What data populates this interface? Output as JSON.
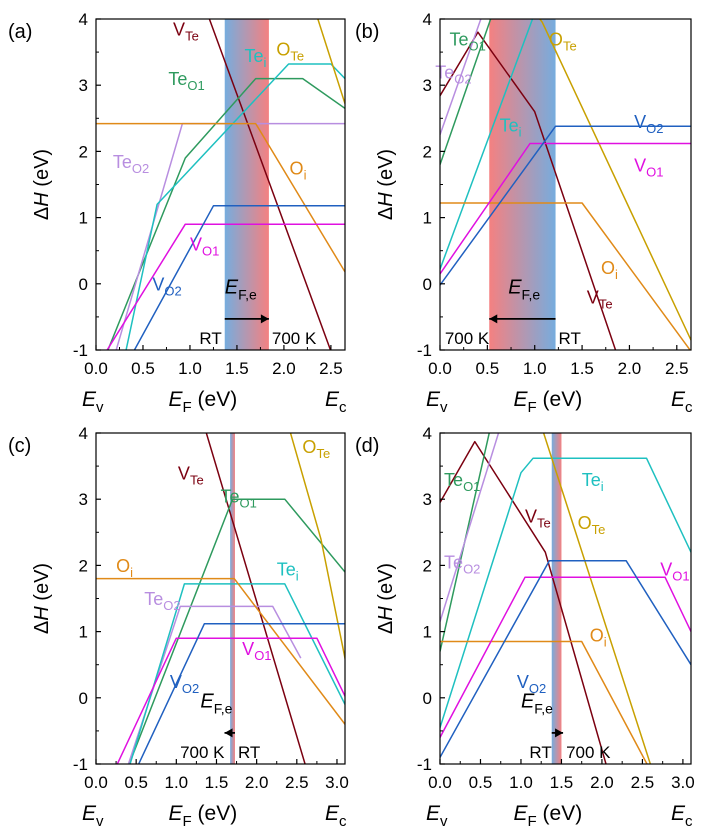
{
  "figure": {
    "panel_labels": [
      "(a)",
      "(b)",
      "(c)",
      "(d)"
    ],
    "ylabel_main": "ΔH",
    "ylabel_italic": "H",
    "ylabel_delta": "Δ",
    "ylabel_unit": " (eV)",
    "xlabel_main": "E",
    "xlabel_sub": "F",
    "xlabel_unit": " (eV)",
    "ev_main": "E",
    "ev_sub": "v",
    "ec_main": "E",
    "ec_sub": "c",
    "efe_main": "E",
    "efe_sub": "F,e"
  },
  "colors": {
    "V_Te": "#7b0010",
    "Te_O1": "#2e9a5e",
    "Te_O2": "#b88ee0",
    "Te_i": "#1ec0c0",
    "O_Te": "#c8a000",
    "O_i": "#e08a18",
    "V_O1": "#e010e0",
    "V_O2": "#2060c0",
    "band_red": "#f47a7a",
    "band_blue": "#6fa8dc"
  },
  "chart_data": [
    {
      "type": "line",
      "panel": "(a)",
      "xlim": [
        0,
        2.65
      ],
      "ylim": [
        -1,
        4
      ],
      "xticks": [
        "0.0",
        "0.5",
        "1.0",
        "1.5",
        "2.0",
        "2.5"
      ],
      "yticks": [
        "-1",
        "0",
        "1",
        "2",
        "3",
        "4"
      ],
      "band": {
        "from": 1.37,
        "to": 1.84,
        "red_side": "right"
      },
      "arrow": {
        "from": 1.37,
        "to": 1.84,
        "y": -0.53
      },
      "arrow_left_label": "RT",
      "arrow_right_label": "700 K",
      "efe_label_x": 1.37,
      "efe_label_y": -0.15,
      "series": [
        {
          "name": "V_Te",
          "label_main": "V",
          "label_sub": "Te",
          "label_at": [
            0.82,
            3.75
          ],
          "x": [
            1.0,
            2.65
          ],
          "y": [
            4.8,
            -1.6
          ]
        },
        {
          "name": "Te_O1",
          "label_main": "Te",
          "label_sub": "O1",
          "label_at": [
            0.77,
            3.0
          ],
          "x": [
            -0.1,
            0.95,
            1.7,
            2.2,
            2.65
          ],
          "y": [
            -1.8,
            1.9,
            3.1,
            3.1,
            2.65
          ]
        },
        {
          "name": "Te_O2",
          "label_main": "Te",
          "label_sub": "O2",
          "label_at": [
            0.18,
            1.75
          ],
          "x": [
            0.05,
            0.92,
            2.65
          ],
          "y": [
            -1.8,
            2.42,
            2.42
          ]
        },
        {
          "name": "Te_i",
          "label_main": "Te",
          "label_sub": "i",
          "label_at": [
            1.58,
            3.35
          ],
          "x": [
            0.2,
            0.65,
            2.05,
            2.5,
            2.65
          ],
          "y": [
            -1.8,
            1.2,
            3.32,
            3.32,
            3.1
          ]
        },
        {
          "name": "O_Te",
          "label_main": "O",
          "label_sub": "Te",
          "label_at": [
            1.92,
            3.45
          ],
          "x": [
            2.35,
            2.65
          ],
          "y": [
            4.05,
            2.72
          ]
        },
        {
          "name": "O_i",
          "label_main": "O",
          "label_sub": "i",
          "label_at": [
            2.06,
            1.65
          ],
          "x": [
            0.0,
            1.7,
            2.65
          ],
          "y": [
            2.42,
            2.42,
            0.18
          ]
        },
        {
          "name": "V_O1",
          "label_main": "V",
          "label_sub": "O1",
          "label_at": [
            1.0,
            0.5
          ],
          "x": [
            -0.1,
            0.95,
            2.65
          ],
          "y": [
            -1.5,
            0.9,
            0.9
          ]
        },
        {
          "name": "V_O2",
          "label_main": "V",
          "label_sub": "O2",
          "label_at": [
            0.6,
            -0.1
          ],
          "x": [
            0.1,
            1.25,
            2.65
          ],
          "y": [
            -1.8,
            1.18,
            1.18
          ]
        }
      ]
    },
    {
      "type": "line",
      "panel": "(b)",
      "xlim": [
        0,
        2.65
      ],
      "ylim": [
        -1,
        4
      ],
      "xticks": [
        "0.0",
        "0.5",
        "1.0",
        "1.5",
        "2.0",
        "2.5"
      ],
      "yticks": [
        "-1",
        "0",
        "1",
        "2",
        "3",
        "4"
      ],
      "band": {
        "from": 0.52,
        "to": 1.22,
        "red_side": "left"
      },
      "arrow": {
        "from": 1.22,
        "to": 0.52,
        "y": -0.53
      },
      "arrow_left_label": "700 K",
      "arrow_right_label": "RT",
      "efe_label_x": 0.72,
      "efe_label_y": -0.15,
      "series": [
        {
          "name": "V_Te",
          "label_main": "V",
          "label_sub": "Te",
          "label_at": [
            1.55,
            -0.3
          ],
          "x": [
            -0.1,
            0.4,
            1.0,
            1.9
          ],
          "y": [
            2.6,
            3.8,
            2.6,
            -1.2
          ]
        },
        {
          "name": "Te_O1",
          "label_main": "Te",
          "label_sub": "O1",
          "label_at": [
            0.1,
            3.6
          ],
          "x": [
            0.0,
            0.9
          ],
          "y": [
            1.8,
            5.5
          ]
        },
        {
          "name": "Te_O2",
          "label_main": "Te",
          "label_sub": "O2",
          "label_at": [
            -0.05,
            3.1
          ],
          "x": [
            0.0,
            0.48
          ],
          "y": [
            2.25,
            4.2
          ]
        },
        {
          "name": "Te_i",
          "label_main": "Te",
          "label_sub": "i",
          "label_at": [
            0.63,
            2.3
          ],
          "x": [
            0.0,
            1.08
          ],
          "y": [
            0.22,
            4.4
          ]
        },
        {
          "name": "O_Te",
          "label_main": "O",
          "label_sub": "Te",
          "label_at": [
            1.15,
            3.6
          ],
          "x": [
            0.55,
            0.95,
            1.08,
            2.65
          ],
          "y": [
            4.2,
            4.2,
            3.95,
            -0.85
          ]
        },
        {
          "name": "O_i",
          "label_main": "O",
          "label_sub": "i",
          "label_at": [
            1.7,
            0.15
          ],
          "x": [
            0.0,
            1.5,
            2.65
          ],
          "y": [
            1.22,
            1.22,
            -1.02
          ]
        },
        {
          "name": "V_O1",
          "label_main": "V",
          "label_sub": "O1",
          "label_at": [
            2.05,
            1.7
          ],
          "x": [
            0.0,
            0.95,
            2.65
          ],
          "y": [
            0.15,
            2.12,
            2.12
          ]
        },
        {
          "name": "V_O2",
          "label_main": "V",
          "label_sub": "O2",
          "label_at": [
            2.05,
            2.35
          ],
          "x": [
            0.0,
            1.22,
            2.65
          ],
          "y": [
            -0.02,
            2.38,
            2.38
          ]
        }
      ]
    },
    {
      "type": "line",
      "panel": "(c)",
      "xlim": [
        0,
        3.1
      ],
      "ylim": [
        -1,
        4
      ],
      "xticks": [
        "0.0",
        "0.5",
        "1.0",
        "1.5",
        "2.0",
        "2.5",
        "3.0"
      ],
      "yticks": [
        "-1",
        "0",
        "1",
        "2",
        "3",
        "4"
      ],
      "band": {
        "from": 1.67,
        "to": 1.73,
        "red_side": "right"
      },
      "arrow": {
        "from": 1.73,
        "to": 1.6,
        "y": -0.53
      },
      "arrow_left_label": "700 K",
      "arrow_right_label": "RT",
      "efe_label_x": 1.3,
      "efe_label_y": -0.15,
      "series": [
        {
          "name": "V_Te",
          "label_main": "V",
          "label_sub": "Te",
          "label_at": [
            1.02,
            3.3
          ],
          "x": [
            1.3,
            2.75
          ],
          "y": [
            4.3,
            -1.6
          ]
        },
        {
          "name": "Te_O1",
          "label_main": "Te",
          "label_sub": "O1",
          "label_at": [
            1.55,
            2.95
          ],
          "x": [
            0.35,
            1.7,
            2.35,
            3.1
          ],
          "y": [
            -1.2,
            3.0,
            3.0,
            1.9
          ]
        },
        {
          "name": "Te_O2",
          "label_main": "Te",
          "label_sub": "O2",
          "label_at": [
            0.6,
            1.4
          ],
          "x": [
            0.35,
            1.05,
            2.2,
            2.55
          ],
          "y": [
            -1.2,
            1.38,
            1.38,
            0.6
          ]
        },
        {
          "name": "Te_i",
          "label_main": "Te",
          "label_sub": "i",
          "label_at": [
            2.25,
            1.85
          ],
          "x": [
            0.3,
            1.1,
            2.35,
            3.1
          ],
          "y": [
            -1.5,
            1.72,
            1.72,
            -0.1
          ]
        },
        {
          "name": "O_Te",
          "label_main": "O",
          "label_sub": "Te",
          "label_at": [
            2.57,
            3.7
          ],
          "x": [
            2.35,
            2.8,
            3.2
          ],
          "y": [
            4.3,
            2.4,
            0.0
          ]
        },
        {
          "name": "O_i",
          "label_main": "O",
          "label_sub": "i",
          "label_at": [
            0.25,
            1.9
          ],
          "x": [
            0.0,
            1.72,
            3.1
          ],
          "y": [
            1.8,
            1.8,
            -0.4
          ]
        },
        {
          "name": "V_O1",
          "label_main": "V",
          "label_sub": "O1",
          "label_at": [
            1.82,
            0.65
          ],
          "x": [
            0.15,
            1.0,
            2.75,
            3.15
          ],
          "y": [
            -1.3,
            0.9,
            0.9,
            -0.1
          ]
        },
        {
          "name": "V_O2",
          "label_main": "V",
          "label_sub": "O2",
          "label_at": [
            0.92,
            0.15
          ],
          "x": [
            0.3,
            1.35,
            3.1
          ],
          "y": [
            -1.6,
            1.12,
            1.12
          ]
        }
      ]
    },
    {
      "type": "line",
      "panel": "(d)",
      "xlim": [
        0,
        3.1
      ],
      "ylim": [
        -1,
        4
      ],
      "xticks": [
        "0.0",
        "0.5",
        "1.0",
        "1.5",
        "2.0",
        "2.5",
        "3.0"
      ],
      "yticks": [
        "-1",
        "0",
        "1",
        "2",
        "3",
        "4"
      ],
      "band": {
        "from": 1.38,
        "to": 1.5,
        "red_side": "right"
      },
      "arrow": {
        "from": 1.38,
        "to": 1.52,
        "y": -0.53
      },
      "arrow_left_label": "RT",
      "arrow_right_label": "700 K",
      "efe_label_x": 1.0,
      "efe_label_y": -0.15,
      "series": [
        {
          "name": "V_Te",
          "label_main": "V",
          "label_sub": "Te",
          "label_at": [
            1.05,
            2.65
          ],
          "x": [
            0.0,
            0.43,
            1.3,
            2.12
          ],
          "y": [
            2.95,
            3.87,
            2.2,
            -1.3
          ]
        },
        {
          "name": "Te_O1",
          "label_main": "Te",
          "label_sub": "O1",
          "label_at": [
            0.05,
            3.2
          ],
          "x": [
            0.0,
            0.7
          ],
          "y": [
            0.7,
            4.5
          ]
        },
        {
          "name": "Te_O2",
          "label_main": "Te",
          "label_sub": "O2",
          "label_at": [
            0.05,
            1.95
          ],
          "x": [
            0.0,
            0.85
          ],
          "y": [
            1.15,
            4.5
          ]
        },
        {
          "name": "Te_i",
          "label_main": "Te",
          "label_sub": "i",
          "label_at": [
            1.75,
            3.2
          ],
          "x": [
            0.0,
            1.0,
            1.15,
            2.55,
            3.1
          ],
          "y": [
            -0.45,
            3.4,
            3.62,
            3.62,
            2.2
          ]
        },
        {
          "name": "O_Te",
          "label_main": "O",
          "label_sub": "Te",
          "label_at": [
            1.7,
            2.55
          ],
          "x": [
            0.85,
            1.2,
            2.65
          ],
          "y": [
            4.3,
            4.3,
            -1.2
          ]
        },
        {
          "name": "O_i",
          "label_main": "O",
          "label_sub": "i",
          "label_at": [
            1.85,
            0.85
          ],
          "x": [
            0.0,
            1.75,
            2.6
          ],
          "y": [
            0.85,
            0.85,
            -1.1
          ]
        },
        {
          "name": "V_O1",
          "label_main": "V",
          "label_sub": "O1",
          "label_at": [
            2.72,
            1.85
          ],
          "x": [
            0.0,
            1.05,
            2.78,
            3.1
          ],
          "y": [
            -0.6,
            1.82,
            1.82,
            1.0
          ]
        },
        {
          "name": "V_O2",
          "label_main": "V",
          "label_sub": "O2",
          "label_at": [
            0.95,
            0.15
          ],
          "x": [
            0.0,
            1.35,
            2.3,
            3.1
          ],
          "y": [
            -0.9,
            2.07,
            2.07,
            0.5
          ]
        }
      ]
    }
  ]
}
